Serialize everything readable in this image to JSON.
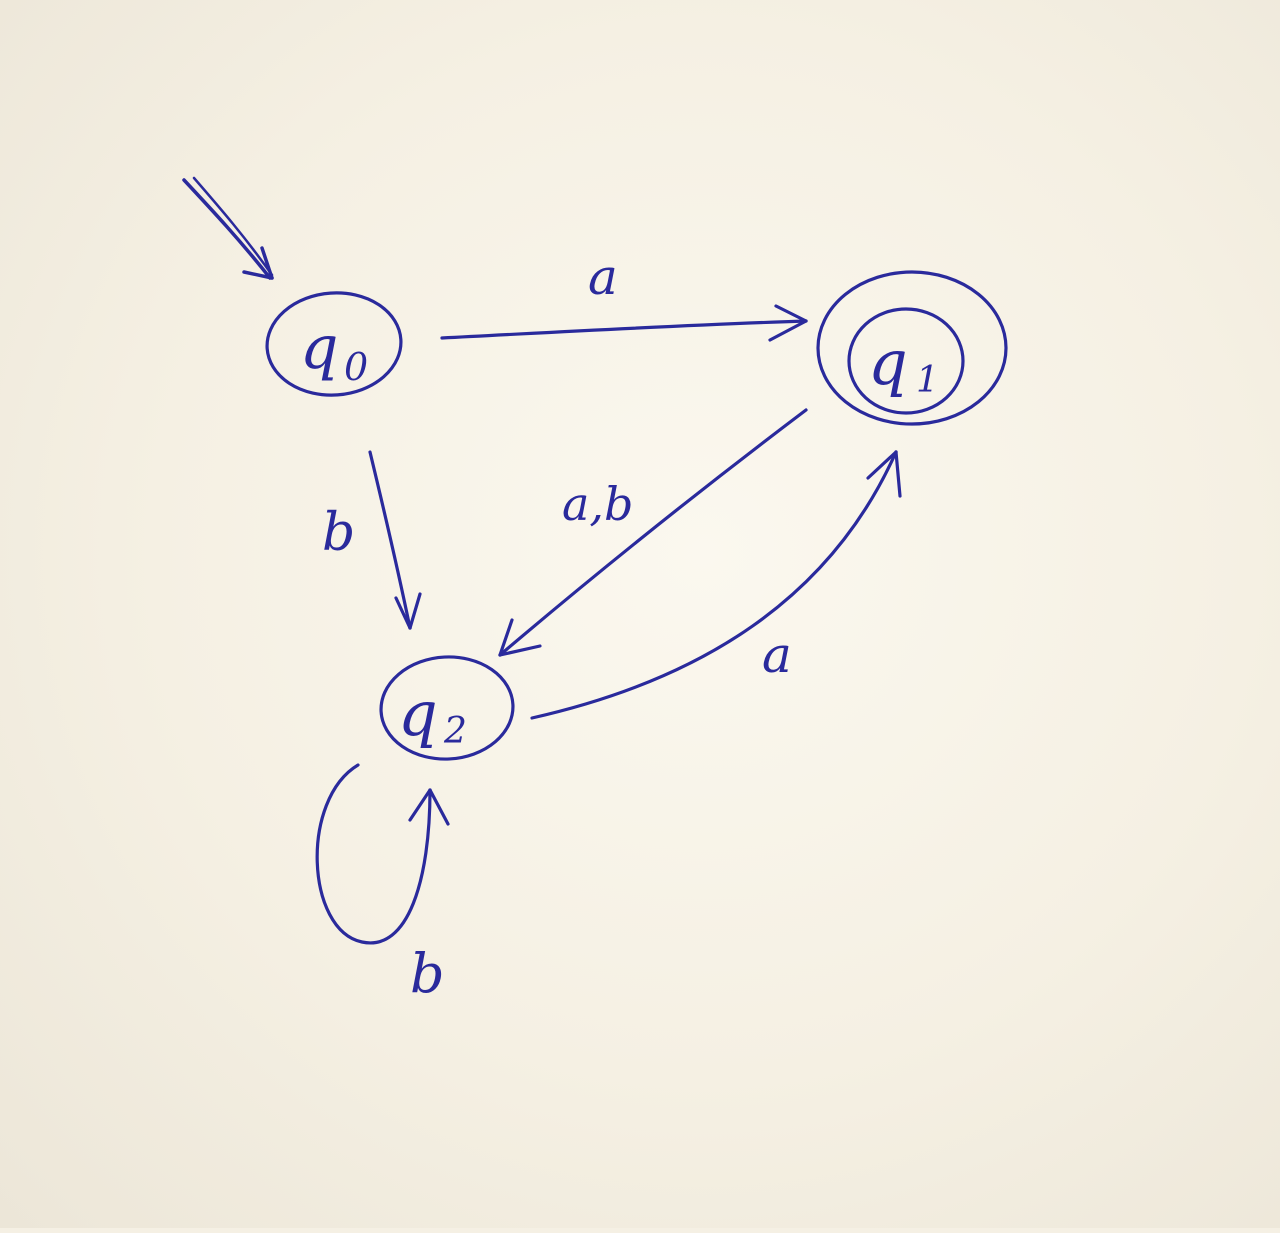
{
  "diagram": {
    "ink_color": "#2a2a9c",
    "paper_color": "#f5f0e4",
    "states": [
      {
        "id": "q0",
        "label": "q0",
        "base": "q",
        "sub": "0",
        "start": true,
        "accepting": false
      },
      {
        "id": "q1",
        "label": "q1",
        "base": "q",
        "sub": "1",
        "start": false,
        "accepting": true
      },
      {
        "id": "q2",
        "label": "q2",
        "base": "q",
        "sub": "2",
        "start": false,
        "accepting": false
      }
    ],
    "transitions": [
      {
        "from": "q0",
        "to": "q1",
        "label": "a"
      },
      {
        "from": "q0",
        "to": "q2",
        "label": "b"
      },
      {
        "from": "q1",
        "to": "q2",
        "label": "a,b"
      },
      {
        "from": "q2",
        "to": "q1",
        "label": "a"
      },
      {
        "from": "q2",
        "to": "q2",
        "label": "b"
      }
    ]
  }
}
